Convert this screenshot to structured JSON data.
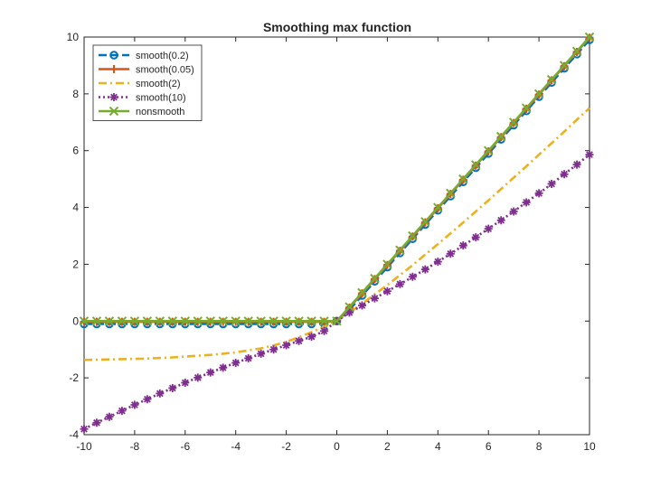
{
  "chart_data": {
    "type": "line",
    "title": "Smoothing max function",
    "xlabel": "",
    "ylabel": "",
    "xlim": [
      -10,
      10
    ],
    "ylim": [
      -4,
      10
    ],
    "xticks": [
      "-10",
      "-8",
      "-6",
      "-4",
      "-2",
      "0",
      "2",
      "4",
      "6",
      "8",
      "10"
    ],
    "yticks": [
      "-4",
      "-2",
      "0",
      "2",
      "4",
      "6",
      "8",
      "10"
    ],
    "grid": false,
    "legend_position": "top-left",
    "x": [
      -10,
      -9.5,
      -9,
      -8.5,
      -8,
      -7.5,
      -7,
      -6.5,
      -6,
      -5.5,
      -5,
      -4.5,
      -4,
      -3.5,
      -3,
      -2.5,
      -2,
      -1.5,
      -1,
      -0.5,
      0,
      0.5,
      1,
      1.5,
      2,
      2.5,
      3,
      3.5,
      4,
      4.5,
      5,
      5.5,
      6,
      6.5,
      7,
      7.5,
      8,
      8.5,
      9,
      9.5,
      10
    ],
    "series": [
      {
        "name": "smooth(0.2)",
        "color": "#0072bd",
        "dash": "dashed",
        "marker": "circle",
        "values": [
          -0.1,
          -0.1,
          -0.1,
          -0.1,
          -0.1,
          -0.1,
          -0.1,
          -0.1,
          -0.1,
          -0.1,
          -0.1,
          -0.1,
          -0.1,
          -0.1,
          -0.1,
          -0.1,
          -0.1,
          -0.1,
          -0.1,
          -0.1,
          0.0,
          0.4,
          0.9,
          1.4,
          1.9,
          2.4,
          2.9,
          3.4,
          3.9,
          4.4,
          4.9,
          5.4,
          5.9,
          6.4,
          6.9,
          7.4,
          7.9,
          8.4,
          8.9,
          9.4,
          9.9
        ]
      },
      {
        "name": "smooth(0.05)",
        "color": "#d95319",
        "dash": "solid",
        "marker": "plus",
        "values": [
          -0.025,
          -0.025,
          -0.025,
          -0.025,
          -0.025,
          -0.025,
          -0.025,
          -0.025,
          -0.025,
          -0.025,
          -0.025,
          -0.025,
          -0.025,
          -0.025,
          -0.025,
          -0.025,
          -0.025,
          -0.025,
          -0.025,
          -0.025,
          0.0,
          0.475,
          0.975,
          1.475,
          1.975,
          2.475,
          2.975,
          3.475,
          3.975,
          4.475,
          4.975,
          5.475,
          5.975,
          6.475,
          6.975,
          7.475,
          7.975,
          8.475,
          8.975,
          9.475,
          9.975
        ]
      },
      {
        "name": "smooth(2)",
        "color": "#edb120",
        "dash": "dashdot",
        "marker": "none",
        "values": [
          -1.37,
          -1.36,
          -1.35,
          -1.34,
          -1.33,
          -1.32,
          -1.3,
          -1.28,
          -1.25,
          -1.22,
          -1.19,
          -1.15,
          -1.1,
          -1.03,
          -0.96,
          -0.86,
          -0.73,
          -0.57,
          -0.39,
          -0.2,
          0.0,
          0.3,
          0.61,
          0.94,
          1.27,
          1.62,
          1.97,
          2.34,
          2.71,
          3.09,
          3.47,
          3.86,
          4.25,
          4.65,
          5.05,
          5.45,
          5.86,
          6.26,
          6.67,
          7.09,
          7.5
        ]
      },
      {
        "name": "smooth(10)",
        "color": "#7e2f8e",
        "dash": "dotted",
        "marker": "asterisk",
        "values": [
          -3.8,
          -3.58,
          -3.37,
          -3.16,
          -2.95,
          -2.75,
          -2.55,
          -2.36,
          -2.17,
          -1.99,
          -1.81,
          -1.64,
          -1.47,
          -1.31,
          -1.15,
          -1.0,
          -0.85,
          -0.7,
          -0.55,
          -0.35,
          0.0,
          0.3,
          0.55,
          0.8,
          1.05,
          1.3,
          1.56,
          1.82,
          2.09,
          2.37,
          2.66,
          2.95,
          3.25,
          3.55,
          3.86,
          4.18,
          4.5,
          4.83,
          5.17,
          5.51,
          5.86
        ]
      },
      {
        "name": "nonsmooth",
        "color": "#77ac30",
        "dash": "solid",
        "marker": "x",
        "values": [
          0,
          0,
          0,
          0,
          0,
          0,
          0,
          0,
          0,
          0,
          0,
          0,
          0,
          0,
          0,
          0,
          0,
          0,
          0,
          0,
          0,
          0.5,
          1,
          1.5,
          2,
          2.5,
          3,
          3.5,
          4,
          4.5,
          5,
          5.5,
          6,
          6.5,
          7,
          7.5,
          8,
          8.5,
          9,
          9.5,
          10
        ]
      }
    ]
  }
}
